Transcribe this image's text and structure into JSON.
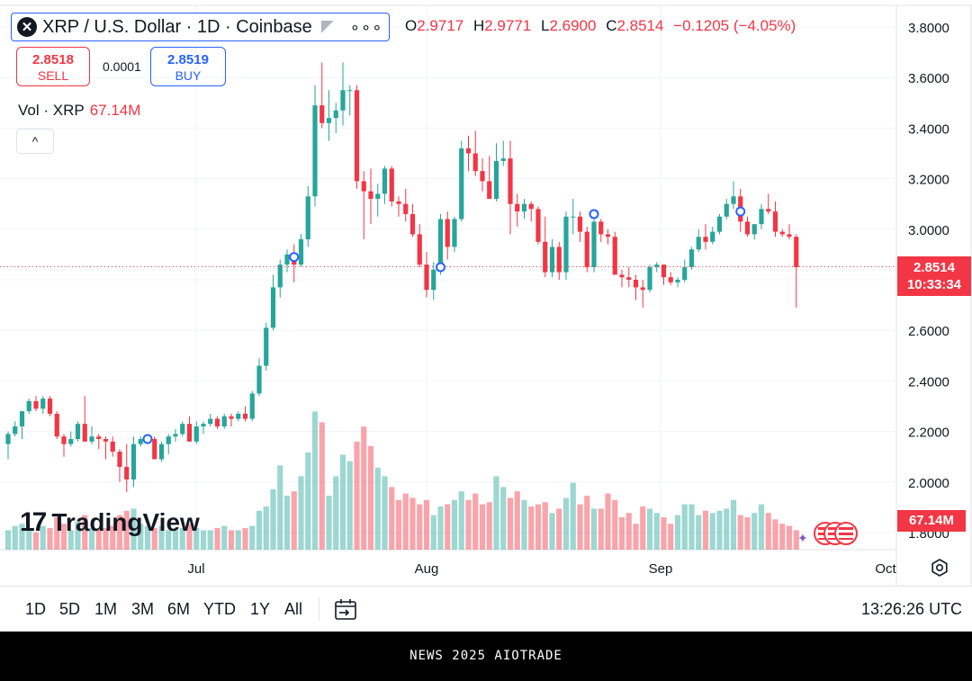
{
  "legend": {
    "logo": "✕",
    "title": "XRP / U.S. Dollar · 1D · Coinbase",
    "more": "∘∘∘"
  },
  "ohlc": {
    "open_label": "O",
    "open": "2.9717",
    "high_label": "H",
    "high": "2.9771",
    "low_label": "L",
    "low": "2.6900",
    "close_label": "C",
    "close": "2.8514",
    "change": "−0.1205 (−4.05%)"
  },
  "trade": {
    "sell_price": "2.8518",
    "sell_label": "SELL",
    "spread": "0.0001",
    "buy_price": "2.8519",
    "buy_label": "BUY"
  },
  "volume_legend": {
    "label": "Vol · XRP",
    "value": "67.14M"
  },
  "collapse_icon": "^",
  "price_badge": {
    "price": "2.8514",
    "countdown": "10:33:34"
  },
  "volume_badge": "67.14M",
  "brand": {
    "logo": "17",
    "name": "TradingView"
  },
  "toolbar": {
    "ranges": [
      "1D",
      "5D",
      "1M",
      "3M",
      "6M",
      "YTD",
      "1Y",
      "All"
    ],
    "clock": "13:26:26 UTC"
  },
  "footer": "NEWS 2025 AIOTRADE",
  "colors": {
    "up": "#26a69a",
    "down": "#f23645",
    "accent": "#2962ff",
    "grid": "#f0f3fa"
  },
  "chart_data": {
    "type": "candlestick",
    "title": "XRP / U.S. Dollar · 1D · Coinbase",
    "y_axis": {
      "ticks": [
        "3.8000",
        "3.6000",
        "3.4000",
        "3.2000",
        "3.0000",
        "2.8000",
        "2.6000",
        "2.4000",
        "2.2000",
        "2.0000",
        "1.8000"
      ],
      "min": 1.8,
      "max": 3.8,
      "position": "right"
    },
    "x_axis": {
      "ticks": [
        "Jul",
        "Aug",
        "Sep",
        "Oct"
      ]
    },
    "grid": true,
    "last_price": 2.8514,
    "candles": [
      {
        "o": 2.15,
        "h": 2.2,
        "l": 2.09,
        "c": 2.19
      },
      {
        "o": 2.19,
        "h": 2.24,
        "l": 2.18,
        "c": 2.22
      },
      {
        "o": 2.22,
        "h": 2.28,
        "l": 2.17,
        "c": 2.28
      },
      {
        "o": 2.28,
        "h": 2.33,
        "l": 2.27,
        "c": 2.32
      },
      {
        "o": 2.32,
        "h": 2.34,
        "l": 2.28,
        "c": 2.29
      },
      {
        "o": 2.29,
        "h": 2.34,
        "l": 2.27,
        "c": 2.33
      },
      {
        "o": 2.33,
        "h": 2.34,
        "l": 2.26,
        "c": 2.27
      },
      {
        "o": 2.27,
        "h": 2.28,
        "l": 2.17,
        "c": 2.18
      },
      {
        "o": 2.18,
        "h": 2.19,
        "l": 2.1,
        "c": 2.15
      },
      {
        "o": 2.15,
        "h": 2.2,
        "l": 2.14,
        "c": 2.17
      },
      {
        "o": 2.17,
        "h": 2.24,
        "l": 2.16,
        "c": 2.23
      },
      {
        "o": 2.23,
        "h": 2.34,
        "l": 2.16,
        "c": 2.16
      },
      {
        "o": 2.16,
        "h": 2.22,
        "l": 2.15,
        "c": 2.18
      },
      {
        "o": 2.18,
        "h": 2.19,
        "l": 2.13,
        "c": 2.17
      },
      {
        "o": 2.17,
        "h": 2.18,
        "l": 2.09,
        "c": 2.16
      },
      {
        "o": 2.16,
        "h": 2.18,
        "l": 2.1,
        "c": 2.12
      },
      {
        "o": 2.12,
        "h": 2.13,
        "l": 2.0,
        "c": 2.06
      },
      {
        "o": 2.06,
        "h": 2.15,
        "l": 1.96,
        "c": 2.01
      },
      {
        "o": 2.01,
        "h": 2.18,
        "l": 1.98,
        "c": 2.15
      },
      {
        "o": 2.15,
        "h": 2.18,
        "l": 2.14,
        "c": 2.17
      },
      {
        "o": 2.17,
        "h": 2.18,
        "l": 2.15,
        "c": 2.17
      },
      {
        "o": 2.17,
        "h": 2.18,
        "l": 2.1,
        "c": 2.09
      },
      {
        "o": 2.09,
        "h": 2.16,
        "l": 2.08,
        "c": 2.15
      },
      {
        "o": 2.15,
        "h": 2.19,
        "l": 2.11,
        "c": 2.18
      },
      {
        "o": 2.18,
        "h": 2.21,
        "l": 2.16,
        "c": 2.19
      },
      {
        "o": 2.19,
        "h": 2.24,
        "l": 2.18,
        "c": 2.23
      },
      {
        "o": 2.23,
        "h": 2.26,
        "l": 2.16,
        "c": 2.16
      },
      {
        "o": 2.16,
        "h": 2.24,
        "l": 2.15,
        "c": 2.22
      },
      {
        "o": 2.22,
        "h": 2.24,
        "l": 2.19,
        "c": 2.23
      },
      {
        "o": 2.23,
        "h": 2.27,
        "l": 2.22,
        "c": 2.25
      },
      {
        "o": 2.25,
        "h": 2.26,
        "l": 2.21,
        "c": 2.22
      },
      {
        "o": 2.22,
        "h": 2.27,
        "l": 2.21,
        "c": 2.26
      },
      {
        "o": 2.26,
        "h": 2.27,
        "l": 2.22,
        "c": 2.25
      },
      {
        "o": 2.25,
        "h": 2.28,
        "l": 2.24,
        "c": 2.27
      },
      {
        "o": 2.27,
        "h": 2.3,
        "l": 2.24,
        "c": 2.25
      },
      {
        "o": 2.25,
        "h": 2.36,
        "l": 2.24,
        "c": 2.35
      },
      {
        "o": 2.35,
        "h": 2.49,
        "l": 2.34,
        "c": 2.46
      },
      {
        "o": 2.46,
        "h": 2.63,
        "l": 2.44,
        "c": 2.61
      },
      {
        "o": 2.61,
        "h": 2.82,
        "l": 2.6,
        "c": 2.77
      },
      {
        "o": 2.77,
        "h": 2.88,
        "l": 2.73,
        "c": 2.86
      },
      {
        "o": 2.86,
        "h": 2.92,
        "l": 2.83,
        "c": 2.9
      },
      {
        "o": 2.9,
        "h": 2.94,
        "l": 2.79,
        "c": 2.86
      },
      {
        "o": 2.86,
        "h": 2.98,
        "l": 2.85,
        "c": 2.96
      },
      {
        "o": 2.96,
        "h": 3.17,
        "l": 2.93,
        "c": 3.13
      },
      {
        "o": 3.13,
        "h": 3.57,
        "l": 3.09,
        "c": 3.49
      },
      {
        "o": 3.49,
        "h": 3.66,
        "l": 3.4,
        "c": 3.42
      },
      {
        "o": 3.42,
        "h": 3.55,
        "l": 3.35,
        "c": 3.44
      },
      {
        "o": 3.44,
        "h": 3.5,
        "l": 3.38,
        "c": 3.47
      },
      {
        "o": 3.47,
        "h": 3.66,
        "l": 3.41,
        "c": 3.55
      },
      {
        "o": 3.55,
        "h": 3.57,
        "l": 3.45,
        "c": 3.55
      },
      {
        "o": 3.55,
        "h": 3.57,
        "l": 3.16,
        "c": 3.19
      },
      {
        "o": 3.19,
        "h": 3.23,
        "l": 2.96,
        "c": 3.15
      },
      {
        "o": 3.15,
        "h": 3.24,
        "l": 3.02,
        "c": 3.12
      },
      {
        "o": 3.12,
        "h": 3.18,
        "l": 3.05,
        "c": 3.14
      },
      {
        "o": 3.14,
        "h": 3.25,
        "l": 3.1,
        "c": 3.24
      },
      {
        "o": 3.24,
        "h": 3.25,
        "l": 3.09,
        "c": 3.11
      },
      {
        "o": 3.11,
        "h": 3.13,
        "l": 3.05,
        "c": 3.1
      },
      {
        "o": 3.1,
        "h": 3.16,
        "l": 3.03,
        "c": 3.06
      },
      {
        "o": 3.06,
        "h": 3.1,
        "l": 2.97,
        "c": 2.98
      },
      {
        "o": 2.98,
        "h": 3.02,
        "l": 2.85,
        "c": 2.86
      },
      {
        "o": 2.86,
        "h": 2.91,
        "l": 2.73,
        "c": 2.76
      },
      {
        "o": 2.76,
        "h": 2.87,
        "l": 2.72,
        "c": 2.84
      },
      {
        "o": 2.84,
        "h": 3.06,
        "l": 2.82,
        "c": 3.04
      },
      {
        "o": 3.04,
        "h": 3.07,
        "l": 2.88,
        "c": 2.93
      },
      {
        "o": 2.93,
        "h": 3.05,
        "l": 2.91,
        "c": 3.04
      },
      {
        "o": 3.04,
        "h": 3.35,
        "l": 3.03,
        "c": 3.32
      },
      {
        "o": 3.32,
        "h": 3.37,
        "l": 3.23,
        "c": 3.3
      },
      {
        "o": 3.3,
        "h": 3.39,
        "l": 3.21,
        "c": 3.23
      },
      {
        "o": 3.23,
        "h": 3.28,
        "l": 3.15,
        "c": 3.19
      },
      {
        "o": 3.19,
        "h": 3.29,
        "l": 3.12,
        "c": 3.12
      },
      {
        "o": 3.12,
        "h": 3.34,
        "l": 3.11,
        "c": 3.27
      },
      {
        "o": 3.27,
        "h": 3.35,
        "l": 3.25,
        "c": 3.28
      },
      {
        "o": 3.28,
        "h": 3.35,
        "l": 2.98,
        "c": 3.1
      },
      {
        "o": 3.1,
        "h": 3.14,
        "l": 3.01,
        "c": 3.07
      },
      {
        "o": 3.07,
        "h": 3.12,
        "l": 3.04,
        "c": 3.1
      },
      {
        "o": 3.1,
        "h": 3.11,
        "l": 3.03,
        "c": 3.08
      },
      {
        "o": 3.08,
        "h": 3.09,
        "l": 2.94,
        "c": 2.95
      },
      {
        "o": 2.95,
        "h": 3.05,
        "l": 2.81,
        "c": 2.83
      },
      {
        "o": 2.83,
        "h": 2.96,
        "l": 2.81,
        "c": 2.93
      },
      {
        "o": 2.93,
        "h": 2.95,
        "l": 2.8,
        "c": 2.83
      },
      {
        "o": 2.83,
        "h": 3.07,
        "l": 2.8,
        "c": 3.05
      },
      {
        "o": 3.05,
        "h": 3.12,
        "l": 2.98,
        "c": 3.05
      },
      {
        "o": 3.05,
        "h": 3.07,
        "l": 2.95,
        "c": 2.99
      },
      {
        "o": 2.99,
        "h": 3.01,
        "l": 2.83,
        "c": 2.85
      },
      {
        "o": 2.85,
        "h": 3.04,
        "l": 2.83,
        "c": 3.03
      },
      {
        "o": 3.03,
        "h": 3.04,
        "l": 2.95,
        "c": 2.98
      },
      {
        "o": 2.98,
        "h": 3.0,
        "l": 2.94,
        "c": 2.97
      },
      {
        "o": 2.97,
        "h": 2.99,
        "l": 2.82,
        "c": 2.82
      },
      {
        "o": 2.82,
        "h": 2.84,
        "l": 2.77,
        "c": 2.81
      },
      {
        "o": 2.81,
        "h": 2.85,
        "l": 2.77,
        "c": 2.8
      },
      {
        "o": 2.8,
        "h": 2.82,
        "l": 2.72,
        "c": 2.77
      },
      {
        "o": 2.77,
        "h": 2.8,
        "l": 2.69,
        "c": 2.76
      },
      {
        "o": 2.76,
        "h": 2.86,
        "l": 2.75,
        "c": 2.85
      },
      {
        "o": 2.85,
        "h": 2.87,
        "l": 2.83,
        "c": 2.86
      },
      {
        "o": 2.86,
        "h": 2.86,
        "l": 2.78,
        "c": 2.81
      },
      {
        "o": 2.81,
        "h": 2.83,
        "l": 2.78,
        "c": 2.79
      },
      {
        "o": 2.79,
        "h": 2.81,
        "l": 2.77,
        "c": 2.8
      },
      {
        "o": 2.8,
        "h": 2.88,
        "l": 2.79,
        "c": 2.85
      },
      {
        "o": 2.85,
        "h": 2.93,
        "l": 2.84,
        "c": 2.92
      },
      {
        "o": 2.92,
        "h": 3.0,
        "l": 2.91,
        "c": 2.97
      },
      {
        "o": 2.97,
        "h": 3.02,
        "l": 2.92,
        "c": 2.95
      },
      {
        "o": 2.95,
        "h": 3.01,
        "l": 2.94,
        "c": 2.99
      },
      {
        "o": 2.99,
        "h": 3.06,
        "l": 2.98,
        "c": 3.05
      },
      {
        "o": 3.05,
        "h": 3.12,
        "l": 3.04,
        "c": 3.1
      },
      {
        "o": 3.1,
        "h": 3.19,
        "l": 3.08,
        "c": 3.13
      },
      {
        "o": 3.13,
        "h": 3.16,
        "l": 2.99,
        "c": 3.03
      },
      {
        "o": 3.03,
        "h": 3.05,
        "l": 2.97,
        "c": 2.98
      },
      {
        "o": 2.98,
        "h": 3.02,
        "l": 2.96,
        "c": 3.02
      },
      {
        "o": 3.02,
        "h": 3.1,
        "l": 3.0,
        "c": 3.08
      },
      {
        "o": 3.08,
        "h": 3.14,
        "l": 3.06,
        "c": 3.07
      },
      {
        "o": 3.07,
        "h": 3.11,
        "l": 2.97,
        "c": 2.99
      },
      {
        "o": 2.99,
        "h": 3.0,
        "l": 2.97,
        "c": 2.98
      },
      {
        "o": 2.98,
        "h": 3.02,
        "l": 2.96,
        "c": 2.97
      },
      {
        "o": 2.97,
        "h": 2.98,
        "l": 2.69,
        "c": 2.85
      }
    ],
    "volume": [
      0.45,
      0.55,
      0.6,
      0.5,
      0.4,
      0.55,
      0.5,
      0.75,
      0.6,
      0.45,
      0.65,
      0.8,
      0.5,
      0.45,
      0.5,
      0.55,
      0.8,
      0.9,
      0.95,
      0.6,
      0.55,
      0.5,
      0.55,
      0.45,
      0.45,
      0.5,
      0.6,
      0.5,
      0.45,
      0.45,
      0.5,
      0.55,
      0.45,
      0.45,
      0.5,
      0.55,
      0.9,
      1.0,
      1.4,
      1.95,
      1.25,
      1.35,
      1.7,
      2.25,
      3.2,
      2.95,
      1.25,
      1.7,
      2.2,
      2.05,
      2.5,
      2.85,
      2.4,
      1.9,
      1.7,
      1.45,
      1.15,
      1.3,
      1.2,
      1.05,
      1.15,
      0.8,
      1.0,
      1.05,
      1.15,
      1.35,
      1.15,
      1.3,
      1.05,
      1.1,
      1.7,
      1.45,
      1.2,
      1.35,
      1.15,
      1.0,
      1.05,
      1.1,
      0.85,
      0.95,
      1.2,
      1.55,
      1.05,
      1.25,
      0.95,
      0.95,
      1.3,
      1.15,
      0.75,
      0.85,
      0.6,
      1.0,
      0.95,
      0.85,
      0.75,
      0.6,
      0.8,
      1.05,
      1.05,
      0.8,
      0.9,
      0.85,
      0.9,
      0.95,
      1.15,
      0.8,
      0.75,
      0.85,
      1.05,
      0.85,
      0.7,
      0.6,
      0.55,
      0.45
    ]
  }
}
